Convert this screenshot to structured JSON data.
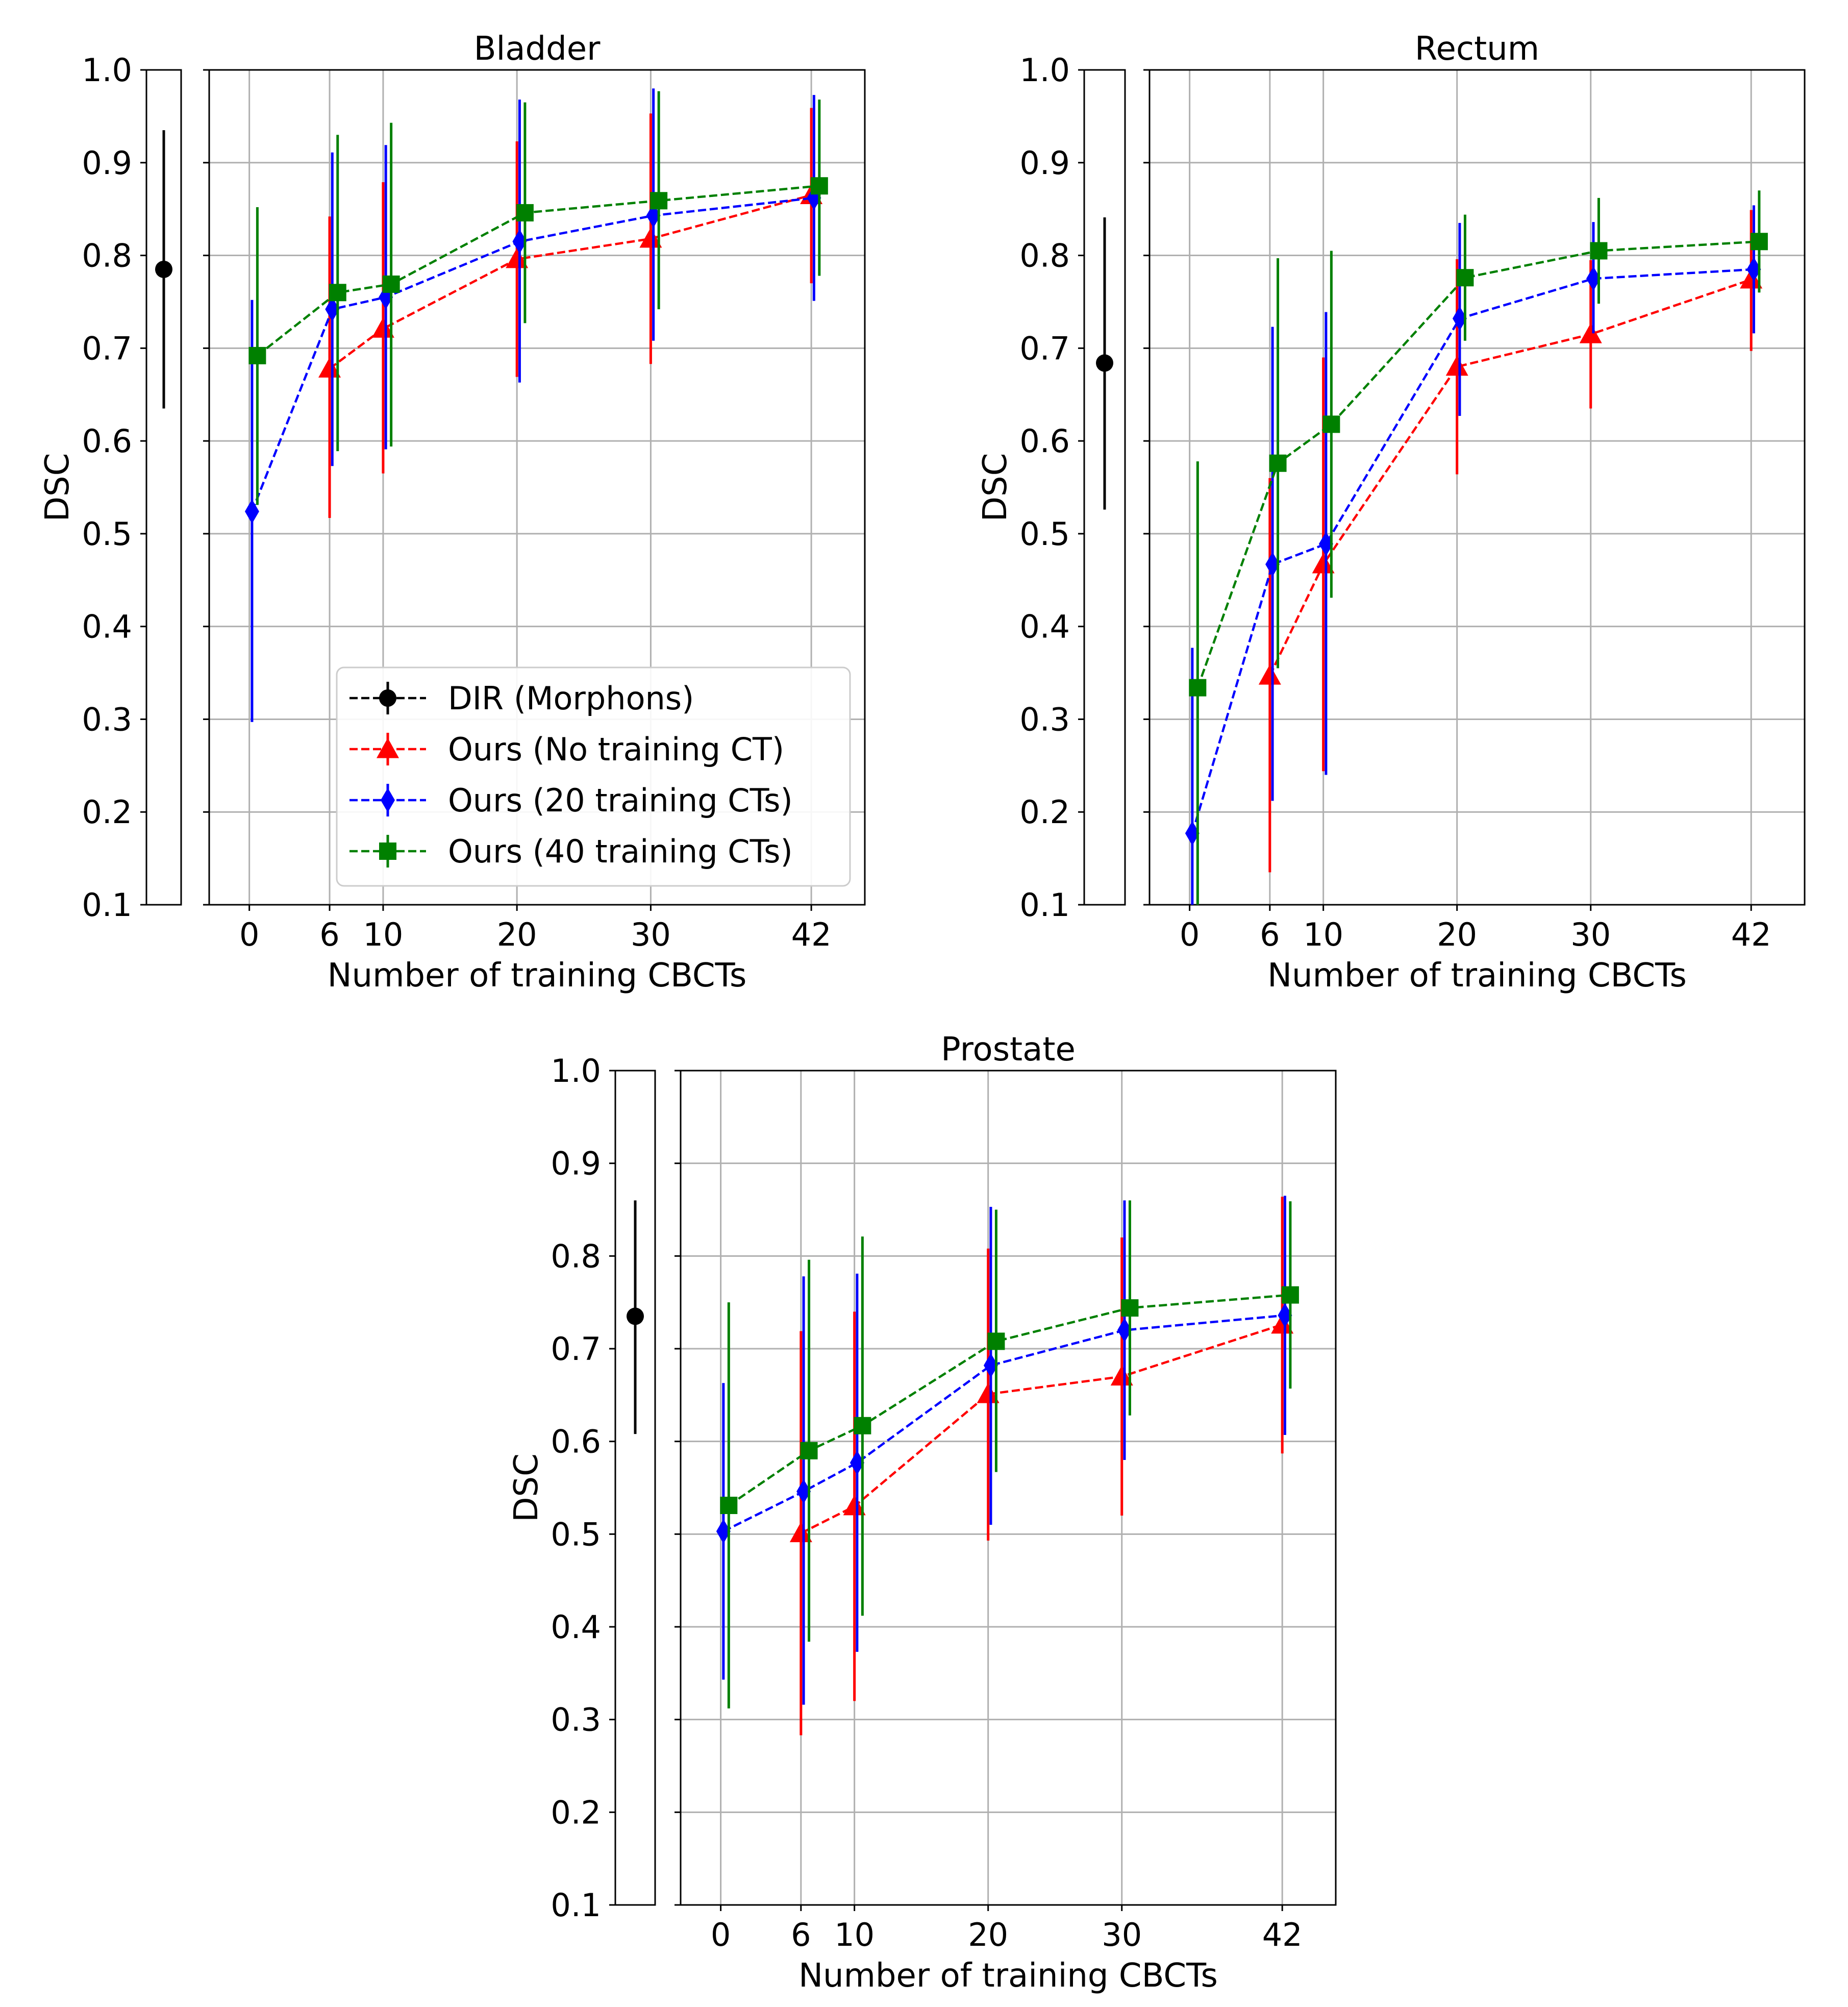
{
  "colors": {
    "dir": "#000000",
    "no_ct": "#ff0000",
    "ct20": "#0000ff",
    "ct40": "#008000",
    "grid": "#b0b0b0",
    "axis": "#000000"
  },
  "legend": {
    "items": [
      {
        "key": "dir",
        "label": "DIR (Morphons)",
        "marker": "circle"
      },
      {
        "key": "no_ct",
        "label": "Ours (No training CT)",
        "marker": "triangle"
      },
      {
        "key": "ct20",
        "label": "Ours (20 training CTs)",
        "marker": "diamond"
      },
      {
        "key": "ct40",
        "label": "Ours (40 training CTs)",
        "marker": "square"
      }
    ]
  },
  "chart_data": [
    {
      "type": "line",
      "title": "Bladder",
      "xlabel": "Number of training CBCTs",
      "ylabel": "DSC",
      "ylim": [
        0.1,
        1.0
      ],
      "yticks": [
        "0.1",
        "0.2",
        "0.3",
        "0.4",
        "0.5",
        "0.6",
        "0.7",
        "0.8",
        "0.9",
        "1.0"
      ],
      "xticks": [
        0,
        6,
        10,
        20,
        30,
        42
      ],
      "xtick_labels": [
        "0",
        "6",
        "10",
        "20",
        "30",
        "42"
      ],
      "legend_position": "lower-right",
      "dir": {
        "mean": 0.785,
        "low": 0.635,
        "high": 0.935
      },
      "series": [
        {
          "key": "no_ct",
          "name": "Ours (No training CT)",
          "x": [
            6,
            10,
            20,
            30,
            42
          ],
          "mean": [
            0.678,
            0.721,
            0.796,
            0.818,
            0.865
          ],
          "low": [
            0.517,
            0.565,
            0.669,
            0.683,
            0.77
          ],
          "high": [
            0.842,
            0.879,
            0.923,
            0.953,
            0.959
          ]
        },
        {
          "key": "ct20",
          "name": "Ours (20 training CTs)",
          "x": [
            0,
            6,
            10,
            20,
            30,
            42
          ],
          "mean": [
            0.524,
            0.742,
            0.755,
            0.815,
            0.843,
            0.862
          ],
          "low": [
            0.297,
            0.573,
            0.591,
            0.663,
            0.708,
            0.751
          ],
          "high": [
            0.752,
            0.911,
            0.919,
            0.968,
            0.98,
            0.973
          ]
        },
        {
          "key": "ct40",
          "name": "Ours (40 training CTs)",
          "x": [
            0,
            6,
            10,
            20,
            30,
            42
          ],
          "mean": [
            0.692,
            0.76,
            0.769,
            0.846,
            0.859,
            0.875
          ],
          "low": [
            0.531,
            0.589,
            0.594,
            0.727,
            0.742,
            0.778
          ],
          "high": [
            0.852,
            0.93,
            0.943,
            0.965,
            0.977,
            0.968
          ]
        }
      ]
    },
    {
      "type": "line",
      "title": "Rectum",
      "xlabel": "Number of training CBCTs",
      "ylabel": "DSC",
      "ylim": [
        0.1,
        1.0
      ],
      "yticks": [
        "0.1",
        "0.2",
        "0.3",
        "0.4",
        "0.5",
        "0.6",
        "0.7",
        "0.8",
        "0.9",
        "1.0"
      ],
      "xticks": [
        0,
        6,
        10,
        20,
        30,
        42
      ],
      "xtick_labels": [
        "0",
        "6",
        "10",
        "20",
        "30",
        "42"
      ],
      "legend_position": "none",
      "dir": {
        "mean": 0.684,
        "low": 0.526,
        "high": 0.841
      },
      "series": [
        {
          "key": "no_ct",
          "name": "Ours (No training CT)",
          "x": [
            6,
            10,
            20,
            30,
            42
          ],
          "mean": [
            0.347,
            0.467,
            0.68,
            0.715,
            0.774
          ],
          "low": [
            0.135,
            0.244,
            0.564,
            0.635,
            0.697
          ],
          "high": [
            0.56,
            0.69,
            0.796,
            0.795,
            0.849
          ]
        },
        {
          "key": "ct20",
          "name": "Ours (20 training CTs)",
          "x": [
            0,
            6,
            10,
            20,
            30,
            42
          ],
          "mean": [
            0.177,
            0.467,
            0.489,
            0.732,
            0.775,
            0.785
          ],
          "low": [
            0.1,
            0.212,
            0.24,
            0.627,
            0.716,
            0.716
          ],
          "high": [
            0.377,
            0.723,
            0.739,
            0.835,
            0.836,
            0.854
          ]
        },
        {
          "key": "ct40",
          "name": "Ours (40 training CTs)",
          "x": [
            0,
            6,
            10,
            20,
            30,
            42
          ],
          "mean": [
            0.334,
            0.576,
            0.618,
            0.776,
            0.805,
            0.815
          ],
          "low": [
            0.1,
            0.355,
            0.431,
            0.708,
            0.748,
            0.76
          ],
          "high": [
            0.578,
            0.797,
            0.805,
            0.844,
            0.862,
            0.87
          ]
        }
      ]
    },
    {
      "type": "line",
      "title": "Prostate",
      "xlabel": "Number of training CBCTs",
      "ylabel": "DSC",
      "ylim": [
        0.1,
        1.0
      ],
      "yticks": [
        "0.1",
        "0.2",
        "0.3",
        "0.4",
        "0.5",
        "0.6",
        "0.7",
        "0.8",
        "0.9",
        "1.0"
      ],
      "xticks": [
        0,
        6,
        10,
        20,
        30,
        42
      ],
      "xtick_labels": [
        "0",
        "6",
        "10",
        "20",
        "30",
        "42"
      ],
      "legend_position": "none",
      "dir": {
        "mean": 0.735,
        "low": 0.608,
        "high": 0.86
      },
      "series": [
        {
          "key": "no_ct",
          "name": "Ours (No training CT)",
          "x": [
            6,
            10,
            20,
            30,
            42
          ],
          "mean": [
            0.501,
            0.53,
            0.651,
            0.67,
            0.726
          ],
          "low": [
            0.283,
            0.32,
            0.493,
            0.52,
            0.587
          ],
          "high": [
            0.719,
            0.74,
            0.808,
            0.82,
            0.864
          ]
        },
        {
          "key": "ct20",
          "name": "Ours (20 training CTs)",
          "x": [
            0,
            6,
            10,
            20,
            30,
            42
          ],
          "mean": [
            0.503,
            0.546,
            0.577,
            0.682,
            0.72,
            0.736
          ],
          "low": [
            0.343,
            0.316,
            0.373,
            0.51,
            0.58,
            0.607
          ],
          "high": [
            0.663,
            0.778,
            0.781,
            0.853,
            0.86,
            0.865
          ]
        },
        {
          "key": "ct40",
          "name": "Ours (40 training CTs)",
          "x": [
            0,
            6,
            10,
            20,
            30,
            42
          ],
          "mean": [
            0.531,
            0.59,
            0.617,
            0.708,
            0.744,
            0.758
          ],
          "low": [
            0.312,
            0.384,
            0.412,
            0.567,
            0.628,
            0.657
          ],
          "high": [
            0.75,
            0.796,
            0.821,
            0.85,
            0.86,
            0.859
          ]
        }
      ]
    }
  ]
}
